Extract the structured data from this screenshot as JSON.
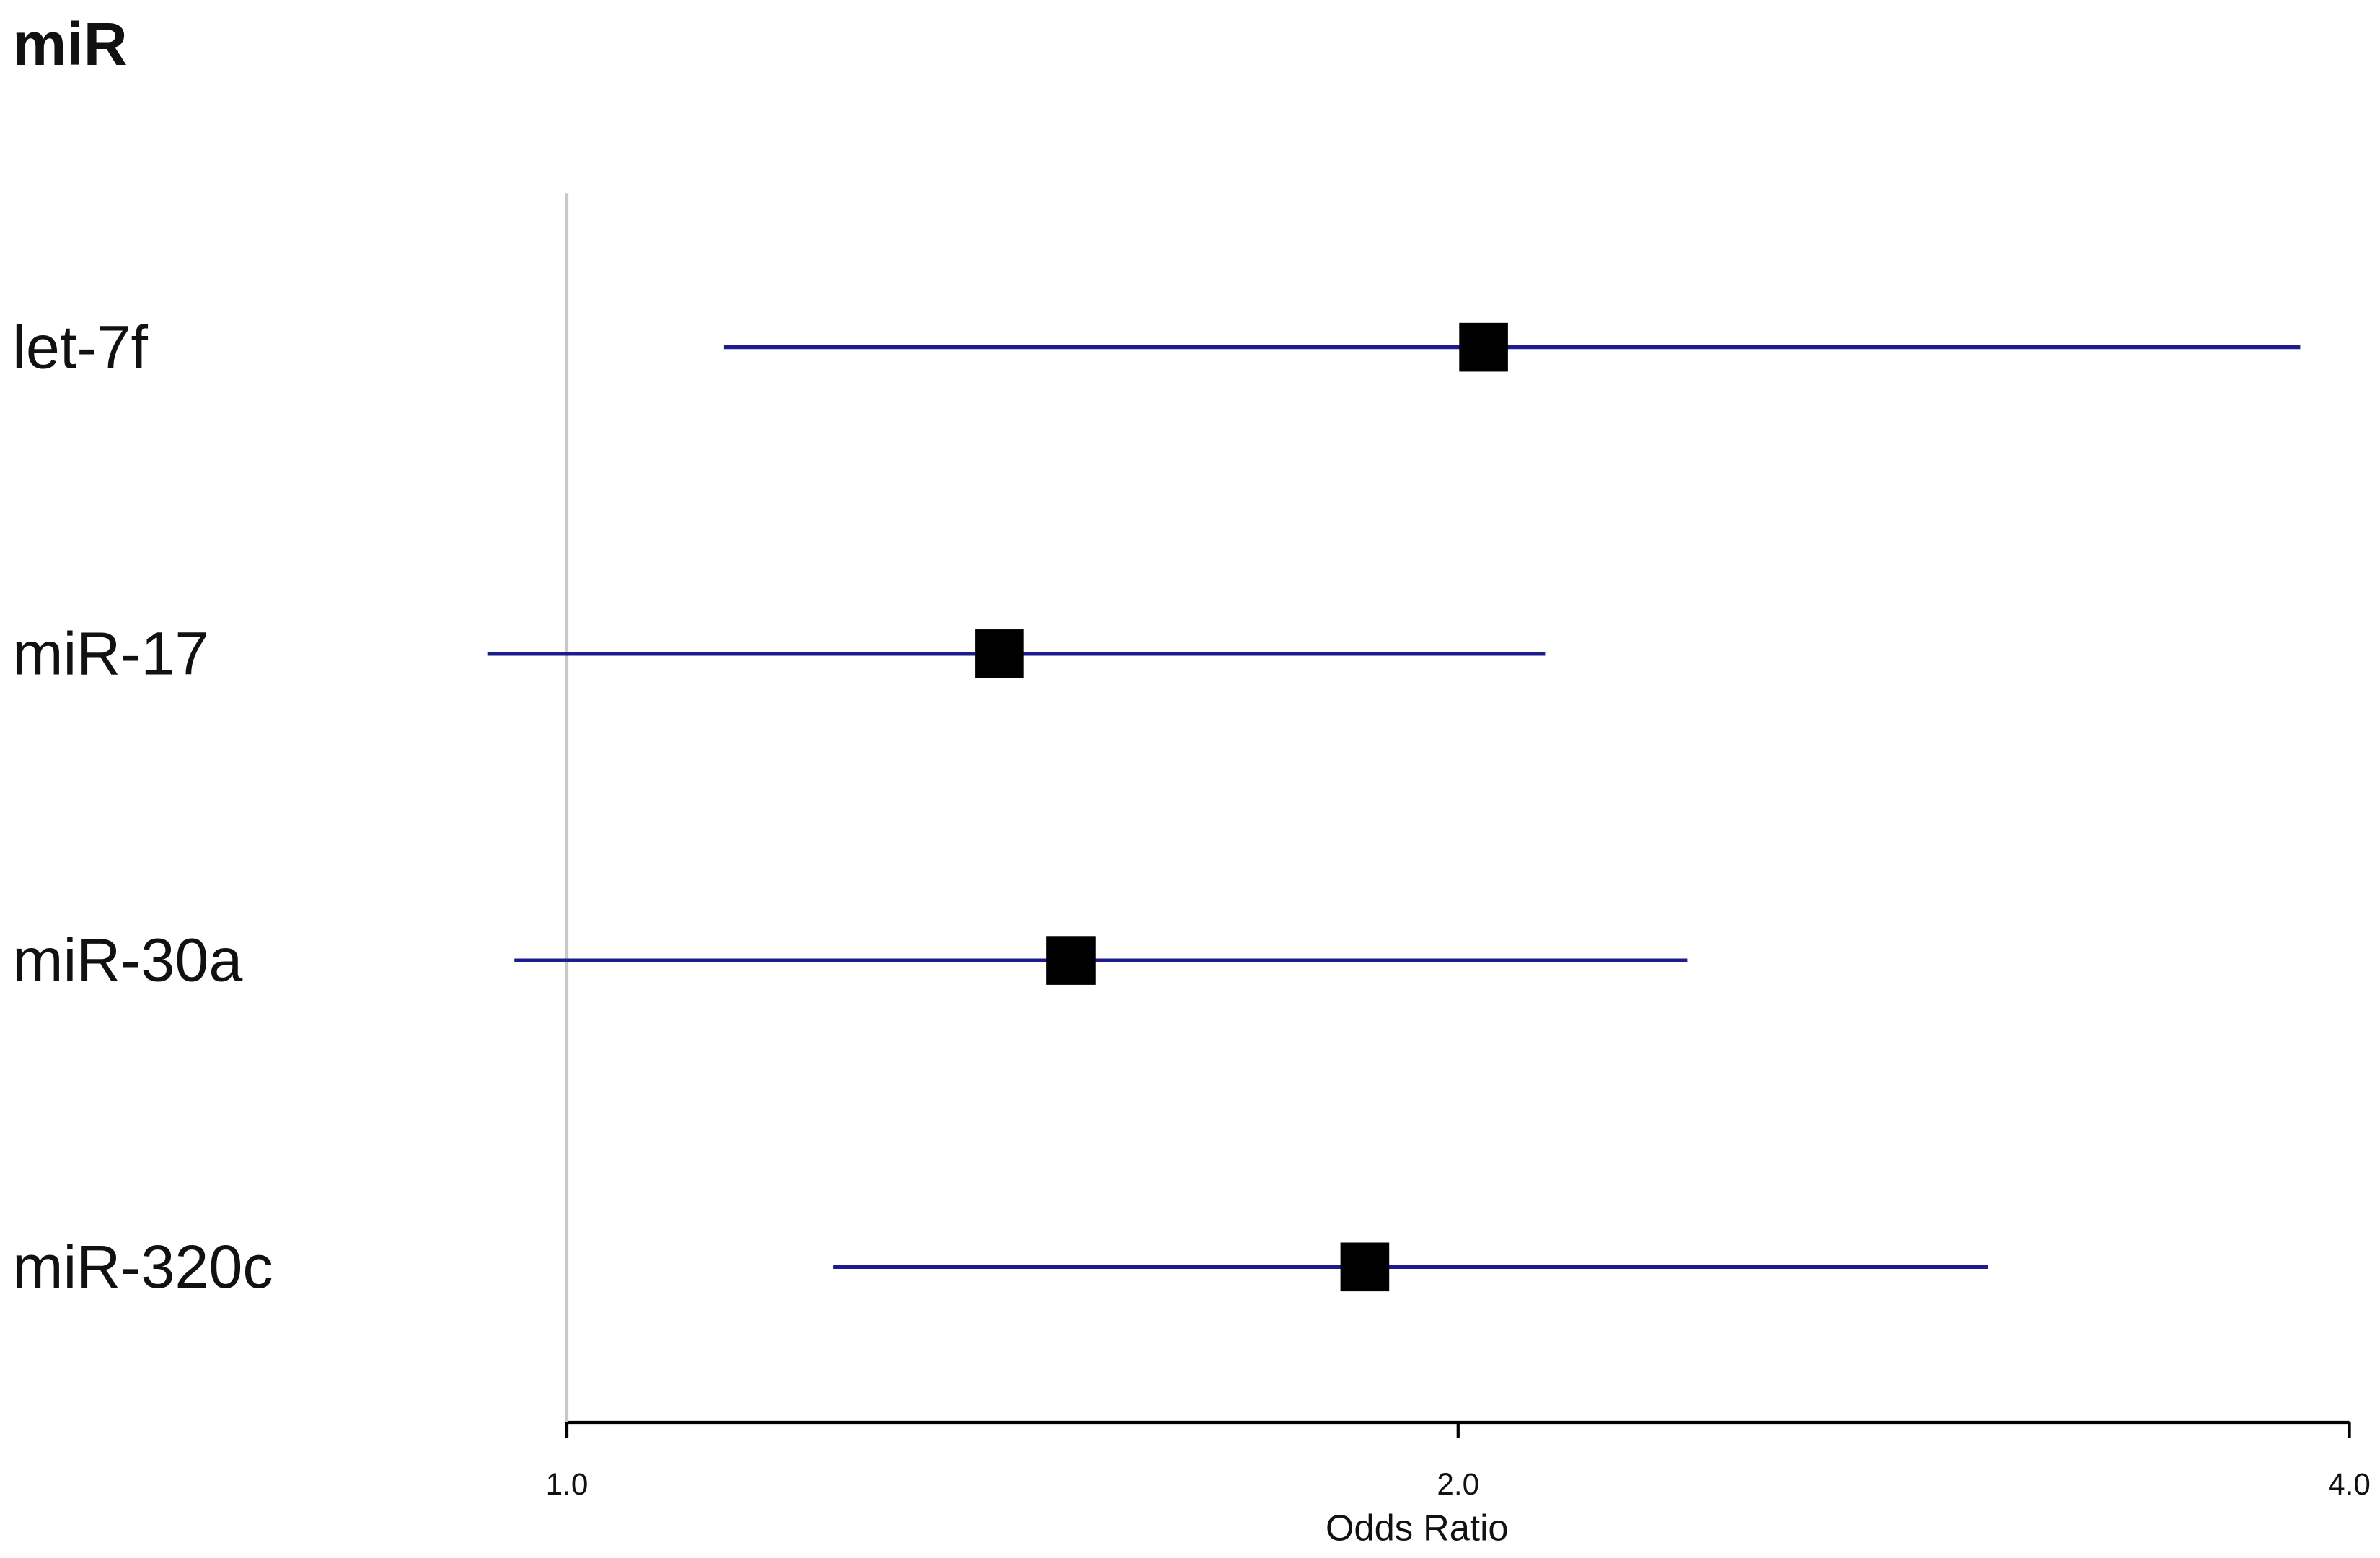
{
  "chart_data": {
    "type": "forest",
    "title": "miR",
    "categories": [
      "let-7f",
      "miR-17",
      "miR-30a",
      "miR-320c"
    ],
    "values": [
      2.04,
      1.4,
      1.48,
      1.86
    ],
    "lower": [
      1.13,
      0.94,
      0.96,
      1.23
    ],
    "upper": [
      3.85,
      2.14,
      2.39,
      3.02
    ],
    "color": "#1c1c8c",
    "marker_color": "#000000",
    "x_label": "Odds Ratio",
    "log_x": true,
    "xlim": [
      1,
      4
    ],
    "xticks": [
      {
        "value": 1,
        "label": "1.0"
      },
      {
        "value": 2,
        "label": "2.0"
      },
      {
        "value": 4,
        "label": "4.0"
      }
    ]
  }
}
